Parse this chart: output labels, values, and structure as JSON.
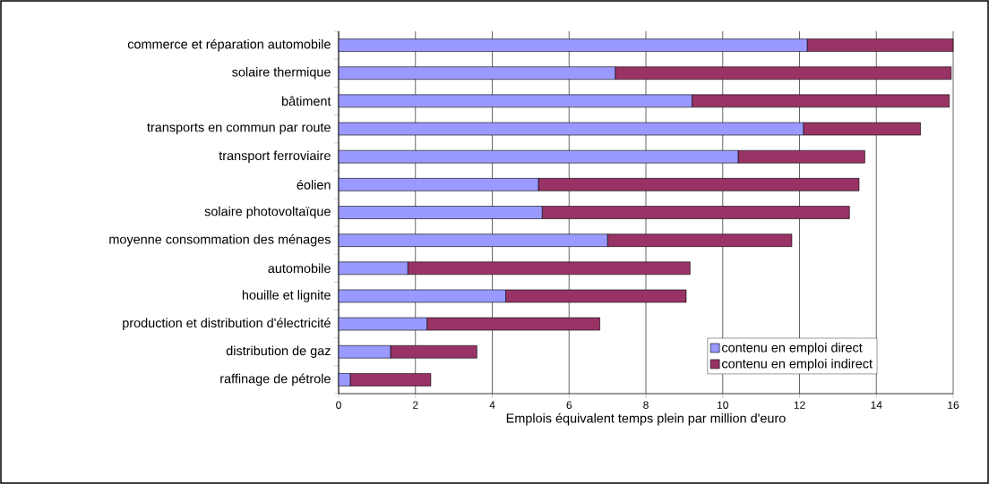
{
  "chart_data": {
    "type": "bar",
    "orientation": "horizontal",
    "stacked": true,
    "categories": [
      "commerce et réparation automobile",
      "solaire thermique",
      "bâtiment",
      "transports en commun par route",
      "transport ferroviaire",
      "éolien",
      "solaire photovoltaïque",
      "moyenne consommation des ménages",
      "automobile",
      "houille et lignite",
      "production et distribution d'électricité",
      "distribution de gaz",
      "raffinage de pétrole"
    ],
    "series": [
      {
        "name": "contenu en emploi direct",
        "color": "#9999ff",
        "values": [
          12.2,
          7.2,
          9.2,
          12.1,
          10.4,
          5.2,
          5.3,
          7.0,
          1.8,
          4.35,
          2.3,
          1.35,
          0.3
        ]
      },
      {
        "name": "contenu en emploi indirect",
        "color": "#993366",
        "values": [
          3.8,
          8.75,
          6.7,
          3.05,
          3.3,
          8.35,
          8.0,
          4.8,
          7.35,
          4.7,
          4.5,
          2.25,
          2.1
        ]
      }
    ],
    "xlim": [
      0,
      16
    ],
    "xticks": [
      0,
      2,
      4,
      6,
      8,
      10,
      12,
      14,
      16
    ],
    "xlabel": "Emplois équivalent temps plein par million d'euro",
    "grid": "x",
    "legend": "bottom right"
  }
}
